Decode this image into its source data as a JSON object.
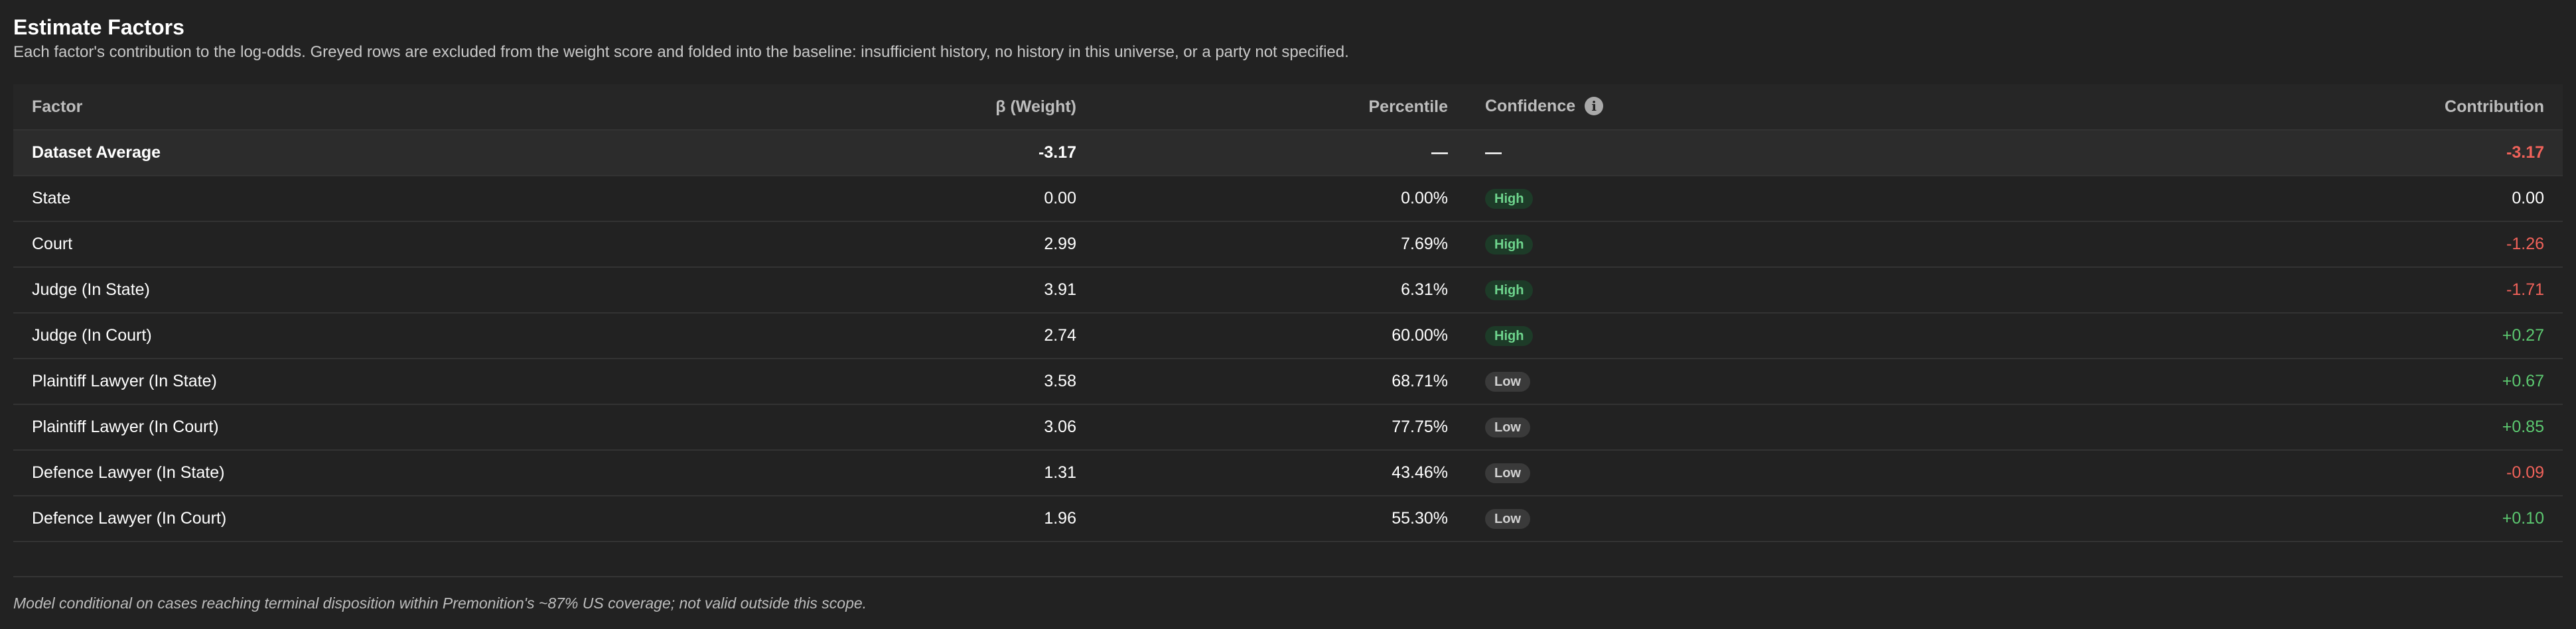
{
  "header": {
    "title": "Estimate Factors",
    "subtitle": "Each factor's contribution to the log-odds. Greyed rows are excluded from the weight score and folded into the baseline: insufficient history, no history in this universe, or a party not specified."
  },
  "table": {
    "columns": {
      "factor": "Factor",
      "beta": "β (Weight)",
      "percentile": "Percentile",
      "confidence": "Confidence",
      "contribution": "Contribution"
    },
    "info_icon_glyph": "i",
    "rows": [
      {
        "factor": "Dataset Average",
        "beta": "-3.17",
        "percentile": "—",
        "confidence": "—",
        "contribution": "-3.17",
        "contribution_sign": "neg",
        "is_baseline": true
      },
      {
        "factor": "State",
        "beta": "0.00",
        "percentile": "0.00%",
        "confidence": "High",
        "contribution": "0.00",
        "contribution_sign": "neutral"
      },
      {
        "factor": "Court",
        "beta": "2.99",
        "percentile": "7.69%",
        "confidence": "High",
        "contribution": "-1.26",
        "contribution_sign": "neg"
      },
      {
        "factor": "Judge (In State)",
        "beta": "3.91",
        "percentile": "6.31%",
        "confidence": "High",
        "contribution": "-1.71",
        "contribution_sign": "neg"
      },
      {
        "factor": "Judge (In Court)",
        "beta": "2.74",
        "percentile": "60.00%",
        "confidence": "High",
        "contribution": "+0.27",
        "contribution_sign": "pos"
      },
      {
        "factor": "Plaintiff Lawyer (In State)",
        "beta": "3.58",
        "percentile": "68.71%",
        "confidence": "Low",
        "contribution": "+0.67",
        "contribution_sign": "pos"
      },
      {
        "factor": "Plaintiff Lawyer (In Court)",
        "beta": "3.06",
        "percentile": "77.75%",
        "confidence": "Low",
        "contribution": "+0.85",
        "contribution_sign": "pos"
      },
      {
        "factor": "Defence Lawyer (In State)",
        "beta": "1.31",
        "percentile": "43.46%",
        "confidence": "Low",
        "contribution": "-0.09",
        "contribution_sign": "neg"
      },
      {
        "factor": "Defence Lawyer (In Court)",
        "beta": "1.96",
        "percentile": "55.30%",
        "confidence": "Low",
        "contribution": "+0.10",
        "contribution_sign": "pos"
      }
    ]
  },
  "footer": {
    "note": "Model conditional on cases reaching terminal disposition within Premonition's ~87% US coverage; not valid outside this scope."
  },
  "colors": {
    "background": "#222222",
    "negative": "#f0625a",
    "positive": "#5cc870",
    "badge_high_bg": "#1d3b28",
    "badge_high_text": "#6fd68e",
    "badge_low_bg": "#3a3a3a",
    "badge_low_text": "#d2d2d2"
  }
}
